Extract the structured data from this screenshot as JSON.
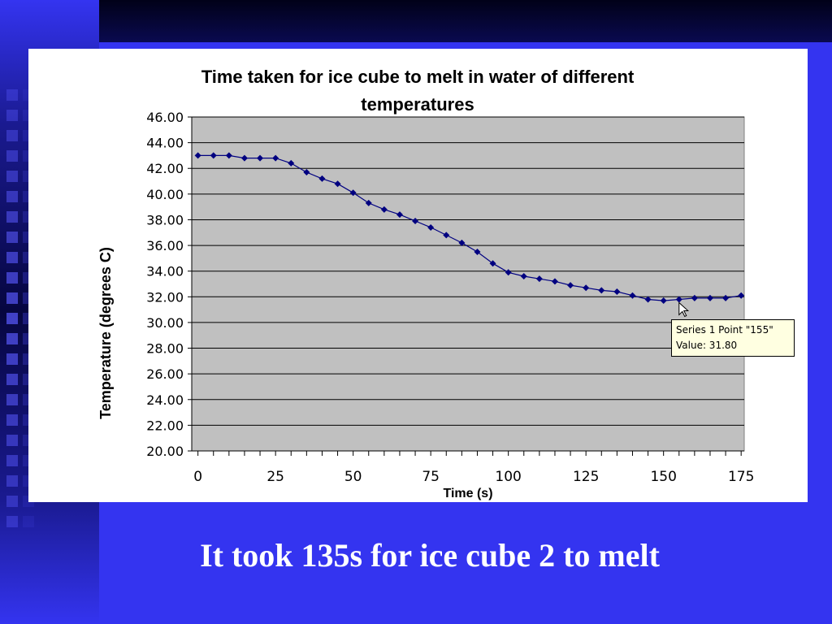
{
  "slide": {
    "caption": "It took 135s for ice cube 2 to melt",
    "colors": {
      "background": "#3434f0",
      "dark_band": "#030330",
      "panel": "#ffffff"
    }
  },
  "tooltip": {
    "line1": "Series 1 Point \"155\"",
    "line2": "Value: 31.80"
  },
  "chart_data": {
    "type": "line",
    "title": "Time taken for ice cube to melt in water of different temperatures",
    "xlabel": "Time (s)",
    "ylabel": "Temperature (degrees C)",
    "xlim": [
      -2,
      176
    ],
    "ylim": [
      20,
      46
    ],
    "x_ticks": [
      0,
      25,
      50,
      75,
      100,
      125,
      150,
      175
    ],
    "x_tick_labels": [
      "0",
      "25",
      "50",
      "75",
      "100",
      "125",
      "150",
      "175"
    ],
    "y_ticks": [
      20,
      22,
      24,
      26,
      28,
      30,
      32,
      34,
      36,
      38,
      40,
      42,
      44,
      46
    ],
    "y_tick_labels": [
      "20.00",
      "22.00",
      "24.00",
      "26.00",
      "28.00",
      "30.00",
      "32.00",
      "34.00",
      "36.00",
      "38.00",
      "40.00",
      "42.00",
      "44.00",
      "46.00"
    ],
    "grid": true,
    "plot_background": "#c0c0c0",
    "line_color": "#000080",
    "marker": "diamond",
    "series": [
      {
        "x": [
          0,
          5,
          10,
          15,
          20,
          25,
          30,
          35,
          40,
          45,
          50,
          55,
          60,
          65,
          70,
          75,
          80,
          85,
          90,
          95,
          100,
          105,
          110,
          115,
          120,
          125,
          130,
          135,
          140,
          145,
          150,
          155,
          160,
          165,
          170,
          175
        ],
        "values": [
          43.0,
          43.0,
          43.0,
          42.8,
          42.8,
          42.8,
          42.4,
          41.7,
          41.2,
          40.8,
          40.1,
          39.3,
          38.8,
          38.4,
          37.9,
          37.4,
          36.8,
          36.2,
          35.5,
          34.6,
          33.9,
          33.6,
          33.4,
          33.2,
          32.9,
          32.7,
          32.5,
          32.4,
          32.1,
          31.8,
          31.7,
          31.8,
          31.9,
          31.9,
          31.9,
          32.1
        ]
      }
    ]
  }
}
